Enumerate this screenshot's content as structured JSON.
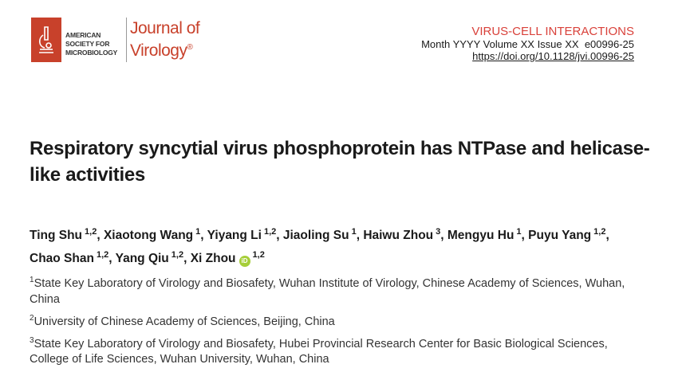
{
  "logo": {
    "society": "AMERICAN SOCIETY FOR MICROBIOLOGY",
    "journal_line1": "Journal of",
    "journal_line2": "Virology",
    "registered": "®",
    "brand_color": "#c8412b"
  },
  "header": {
    "section": "VIRUS-CELL INTERACTIONS",
    "issue": "Month YYYY Volume XX Issue XX  e00996-25",
    "doi": "https://doi.org/10.1128/jvi.00996-25"
  },
  "title": "Respiratory syncytial virus phosphoprotein has NTPase and helicase-like activities",
  "authors": [
    {
      "name": "Ting Shu",
      "aff": "1,2"
    },
    {
      "name": "Xiaotong Wang",
      "aff": "1"
    },
    {
      "name": "Yiyang Li",
      "aff": "1,2"
    },
    {
      "name": "Jiaoling Su",
      "aff": "1"
    },
    {
      "name": "Haiwu Zhou",
      "aff": "3"
    },
    {
      "name": "Mengyu Hu",
      "aff": "1"
    },
    {
      "name": "Puyu Yang",
      "aff": "1,2"
    },
    {
      "name": "Chao Shan",
      "aff": "1,2"
    },
    {
      "name": "Yang Qiu",
      "aff": "1,2"
    },
    {
      "name": "Xi Zhou",
      "aff": "1,2",
      "orcid": "iD"
    }
  ],
  "affiliations": [
    {
      "num": "1",
      "text": "State Key Laboratory of Virology and Biosafety, Wuhan Institute of Virology, Chinese Academy of Sciences, Wuhan, China"
    },
    {
      "num": "2",
      "text": "University of Chinese Academy of Sciences, Beijing, China"
    },
    {
      "num": "3",
      "text": "State Key Laboratory of Virology and Biosafety, Hubei Provincial Research Center for Basic Biological Sciences, College of Life Sciences, Wuhan University, Wuhan, China"
    }
  ]
}
